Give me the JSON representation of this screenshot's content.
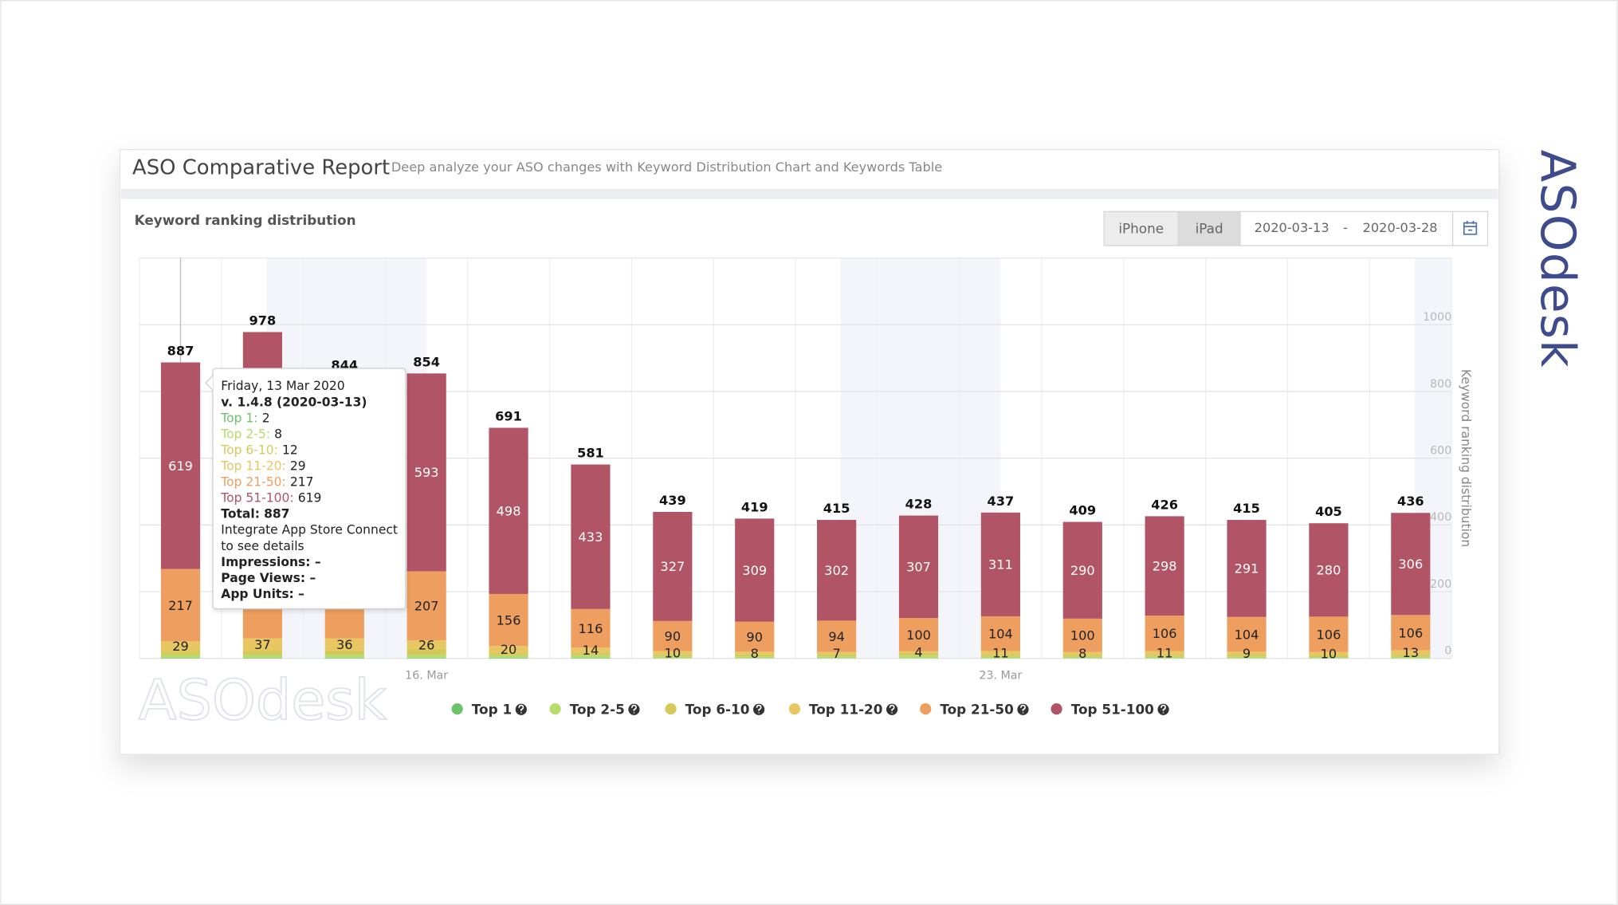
{
  "brand": {
    "logo": "ASOdesk"
  },
  "header": {
    "title": "ASO Comparative Report",
    "subtitle": "Deep analyze your ASO changes with Keyword Distribution Chart and Keywords Table"
  },
  "controls": {
    "devices": [
      "iPhone",
      "iPad"
    ],
    "date_from": "2020-03-13",
    "date_separator": "-",
    "date_to": "2020-03-28"
  },
  "chart_data": {
    "type": "stacked_bar",
    "title": "Keyword ranking distribution",
    "y_axis_label": "Keyword ranking distribution",
    "categories": [
      null,
      null,
      null,
      "16. Mar",
      null,
      null,
      null,
      null,
      null,
      null,
      "23. Mar",
      null,
      null,
      null,
      null,
      null
    ],
    "series": [
      {
        "name": "Top 1",
        "color": "#6cc36b",
        "labels": false,
        "values": [
          2,
          2,
          2,
          2,
          2,
          2,
          1,
          1,
          1,
          1,
          1,
          1,
          1,
          1,
          1,
          1
        ]
      },
      {
        "name": "Top 2-5",
        "color": "#b7dc6a",
        "labels": false,
        "values": [
          8,
          8,
          9,
          9,
          7,
          7,
          5,
          5,
          5,
          7,
          4,
          4,
          4,
          4,
          3,
          4
        ]
      },
      {
        "name": "Top 6-10",
        "color": "#d5c95c",
        "labels": false,
        "values": [
          12,
          13,
          13,
          17,
          8,
          9,
          6,
          6,
          6,
          9,
          6,
          6,
          6,
          6,
          5,
          6
        ]
      },
      {
        "name": "Top 11-20",
        "color": "#e8c661",
        "labels": true,
        "values": [
          29,
          37,
          36,
          26,
          20,
          14,
          10,
          8,
          7,
          4,
          11,
          8,
          11,
          9,
          10,
          13
        ]
      },
      {
        "name": "Top 21-50",
        "color": "#ee9f5f",
        "labels": true,
        "values": [
          217,
          258,
          202,
          207,
          156,
          116,
          90,
          90,
          94,
          100,
          104,
          100,
          106,
          104,
          106,
          106
        ]
      },
      {
        "name": "Top 51-100",
        "color": "#b15566",
        "labels": true,
        "values": [
          619,
          660,
          582,
          593,
          498,
          433,
          327,
          309,
          302,
          307,
          311,
          290,
          298,
          291,
          280,
          306
        ]
      }
    ],
    "totals": [
      887,
      978,
      844,
      854,
      691,
      581,
      439,
      419,
      415,
      428,
      437,
      409,
      426,
      415,
      405,
      436
    ],
    "ylim": [
      0,
      1200
    ],
    "yticks": [
      0,
      200,
      400,
      600,
      800,
      1000
    ],
    "grid": true,
    "y_axis_side": "right",
    "legend": "bottom",
    "annotation": "v. 1.4.8 (2020-03-13)",
    "tooltip": {
      "index": 0,
      "date": "Friday, 13 Mar 2020",
      "version": "v. 1.4.8 (2020-03-13)",
      "separator": ":",
      "total_label": "Total:",
      "note": [
        "Integrate App Store Connect",
        "to see details"
      ],
      "metrics": [
        "Impressions: –",
        "Page Views: –",
        "App Units: –"
      ]
    }
  }
}
